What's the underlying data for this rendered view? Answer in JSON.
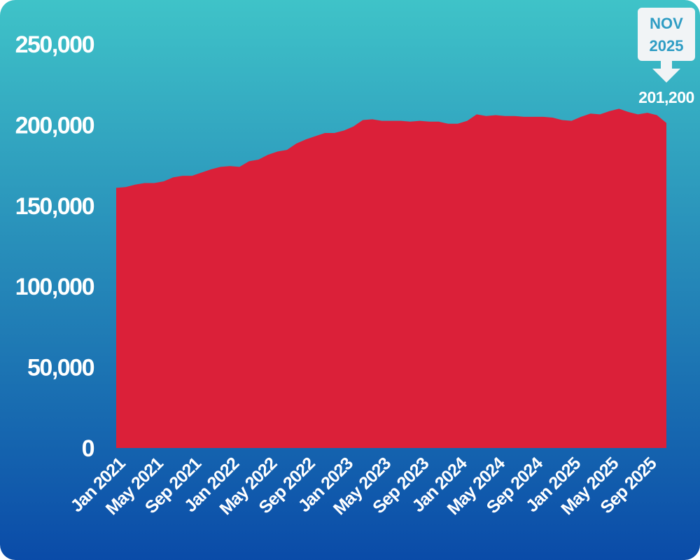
{
  "chart_data": {
    "type": "area",
    "title": "",
    "xlabel": "",
    "ylabel": "",
    "ylim": [
      0,
      250000
    ],
    "yticks": [
      "0",
      "50,000",
      "100,000",
      "150,000",
      "200,000",
      "250,000"
    ],
    "ytick_values": [
      0,
      50000,
      100000,
      150000,
      200000,
      250000
    ],
    "xtick_labels": [
      "Jan 2021",
      "May 2021",
      "Sep 2021",
      "Jan 2022",
      "May 2022",
      "Sep 2022",
      "Jan 2023",
      "May 2023",
      "Sep 2023",
      "Jan 2024",
      "May 2024",
      "Sep 2024",
      "Jan 2025",
      "May 2025",
      "Sep 2025"
    ],
    "grid": false,
    "legend": "none",
    "series": [
      {
        "color": "#db2039",
        "months": [
          "Jan 2021",
          "Feb 2021",
          "Mar 2021",
          "Apr 2021",
          "May 2021",
          "Jun 2021",
          "Jul 2021",
          "Aug 2021",
          "Sep 2021",
          "Oct 2021",
          "Nov 2021",
          "Dec 2021",
          "Jan 2022",
          "Feb 2022",
          "Mar 2022",
          "Apr 2022",
          "May 2022",
          "Jun 2022",
          "Jul 2022",
          "Aug 2022",
          "Sep 2022",
          "Oct 2022",
          "Nov 2022",
          "Dec 2022",
          "Jan 2023",
          "Feb 2023",
          "Mar 2023",
          "Apr 2023",
          "May 2023",
          "Jun 2023",
          "Jul 2023",
          "Aug 2023",
          "Sep 2023",
          "Oct 2023",
          "Nov 2023",
          "Dec 2023",
          "Jan 2024",
          "Feb 2024",
          "Mar 2024",
          "Apr 2024",
          "May 2024",
          "Jun 2024",
          "Jul 2024",
          "Aug 2024",
          "Sep 2024",
          "Oct 2024",
          "Nov 2024",
          "Dec 2024",
          "Jan 2025",
          "Feb 2025",
          "Mar 2025",
          "Apr 2025",
          "May 2025",
          "Jun 2025",
          "Jul 2025",
          "Aug 2025",
          "Sep 2025",
          "Oct 2025",
          "Nov 2025"
        ],
        "values": [
          161000,
          161500,
          163000,
          164000,
          164000,
          165000,
          167500,
          168500,
          168500,
          170500,
          172500,
          174000,
          174500,
          174000,
          177500,
          178500,
          181500,
          183500,
          184500,
          188500,
          191000,
          193000,
          195000,
          195000,
          196500,
          199000,
          203000,
          203500,
          202500,
          202500,
          202500,
          202000,
          202500,
          202000,
          202000,
          200700,
          200700,
          202500,
          206500,
          205500,
          206000,
          205500,
          205500,
          205000,
          205000,
          205000,
          204500,
          203000,
          202500,
          205000,
          207000,
          206500,
          208500,
          210000,
          208000,
          206500,
          207500,
          206000,
          201200
        ]
      }
    ],
    "callout": {
      "label_line1": "NOV",
      "label_line2": "2025",
      "value_label": "201,200",
      "x": "Nov 2025",
      "y": 201200
    }
  },
  "colors": {
    "background_top": "#3fc3c8",
    "background_bottom": "#0a4ba8",
    "area_fill": "#db2039",
    "callout_box": "#f1f4f6",
    "callout_text": "#2f9dc4"
  }
}
